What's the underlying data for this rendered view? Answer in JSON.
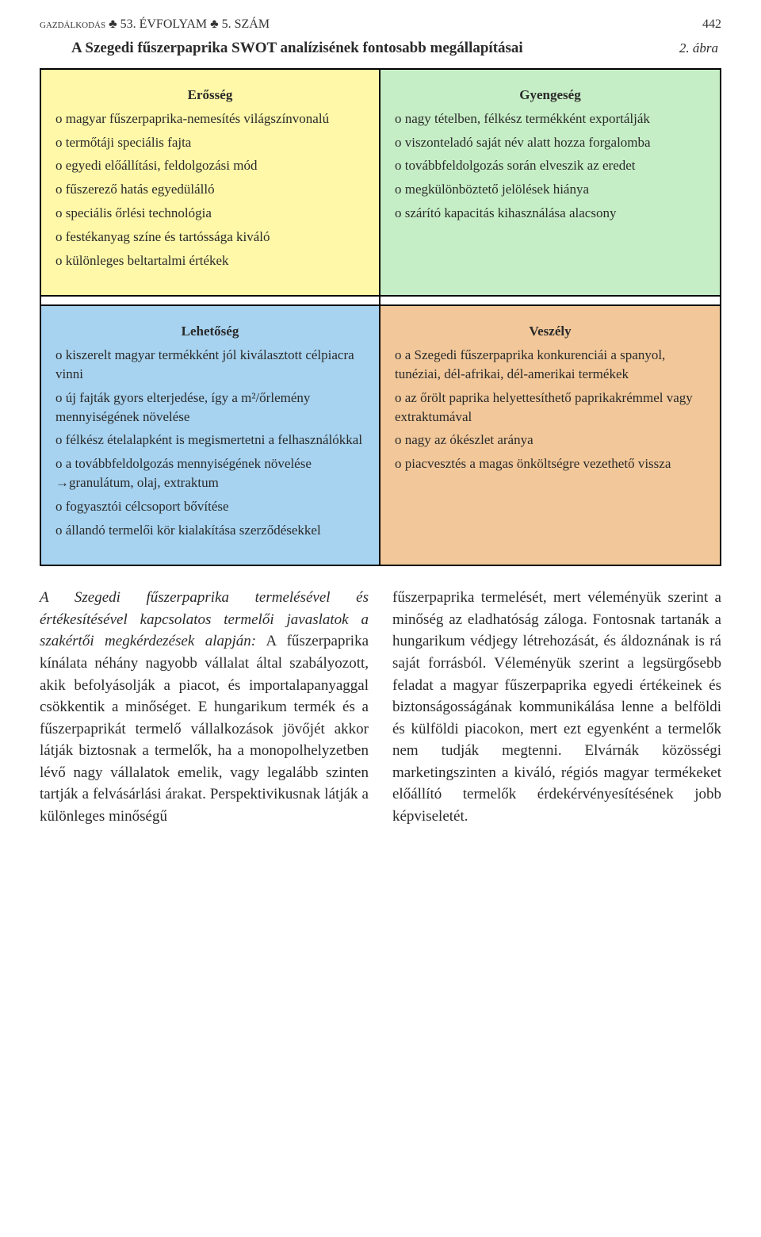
{
  "header": {
    "journal_left": "gazdálkodás ♣ 53. ÉVFOLYAM ♣ 5. SZÁM",
    "page_number": "442"
  },
  "figure": {
    "caption_left": "A Szegedi fűszerpaprika SWOT analízisének fontosabb megállapításai",
    "caption_right": "2. ábra"
  },
  "swot": {
    "strength": {
      "title": "Erősség",
      "bg": "#fef8a8",
      "items": [
        "o magyar fűszerpaprika-nemesítés világszínvonalú",
        "o termőtáji speciális fajta",
        "o egyedi előállítási, feldolgozási mód",
        "o fűszerező hatás egyedülálló",
        "o speciális őrlési technológia",
        "o festékanyag színe és tartóssága kiváló",
        "o különleges beltartalmi értékek"
      ]
    },
    "weakness": {
      "title": "Gyengeség",
      "bg": "#c6eec6",
      "items": [
        "o nagy tételben, félkész termékként exportálják",
        "o viszonteladó saját név alatt hozza forgalomba",
        "o továbbfeldolgozás során elveszik az eredet",
        "o megkülönböztető jelölések hiánya",
        "o szárító kapacitás kihasználása alacsony"
      ]
    },
    "opportunity": {
      "title": "Lehetőség",
      "bg": "#a7d3f0",
      "items": [
        "o kiszerelt magyar termékként jól kiválasztott célpiacra vinni",
        "o új fajták gyors elterjedése, így a m²/őrlemény mennyiségének növelése",
        "o félkész ételalapként is megismertetni a felhasználókkal",
        "o a továbbfeldolgozás mennyiségének növelése →granulátum, olaj, extraktum",
        "o fogyasztói célcsoport bővítése",
        "o állandó termelői kör kialakítása szerződésekkel"
      ]
    },
    "threat": {
      "title": "Veszély",
      "bg": "#f2c89a",
      "items": [
        "o a Szegedi fűszerpaprika konkurenciái a spanyol, tunéziai, dél-afrikai, dél-amerikai termékek",
        "o az őrölt paprika helyettesíthető paprikakrémmel vagy extraktumával",
        "o nagy az ókészlet aránya",
        "o piacvesztés a magas önköltségre vezethető vissza"
      ]
    }
  },
  "body": {
    "col1_italic": "A Szegedi fűszerpaprika termelésével és értékesítésével kapcsolatos termelői javaslatok a szakértői megkérdezések alapján:",
    "col1_rest": " A fűszerpaprika kínálata néhány nagyobb vállalat által szabályozott, akik befolyásolják a piacot, és importalapanyaggal csökkentik a minőséget. E hungarikum termék és a fűszerpaprikát termelő vállalkozások jövőjét akkor látják biztosnak a termelők, ha a monopolhelyzetben lévő nagy vállalatok emelik, vagy legalább szinten tartják a felvásárlási árakat. Perspektivikusnak látják a különleges minőségű",
    "col2": "fűszerpaprika termelését, mert véleményük szerint a minőség az eladhatóság záloga. Fontosnak tartanák a hungarikum védjegy létrehozását, és áldoznának is rá saját forrásból. Véleményük szerint a legsürgősebb feladat a magyar fűszerpaprika egyedi értékeinek és biztonságosságának kommunikálása lenne a belföldi és külföldi piacokon, mert ezt egyenként a termelők nem tudják megtenni. Elvárnák közösségi marketingszinten a kiváló, régiós magyar termékeket előállító termelők érdekérvényesítésének jobb képviseletét."
  },
  "fonts": {
    "body_size": 19,
    "swot_size": 17
  }
}
